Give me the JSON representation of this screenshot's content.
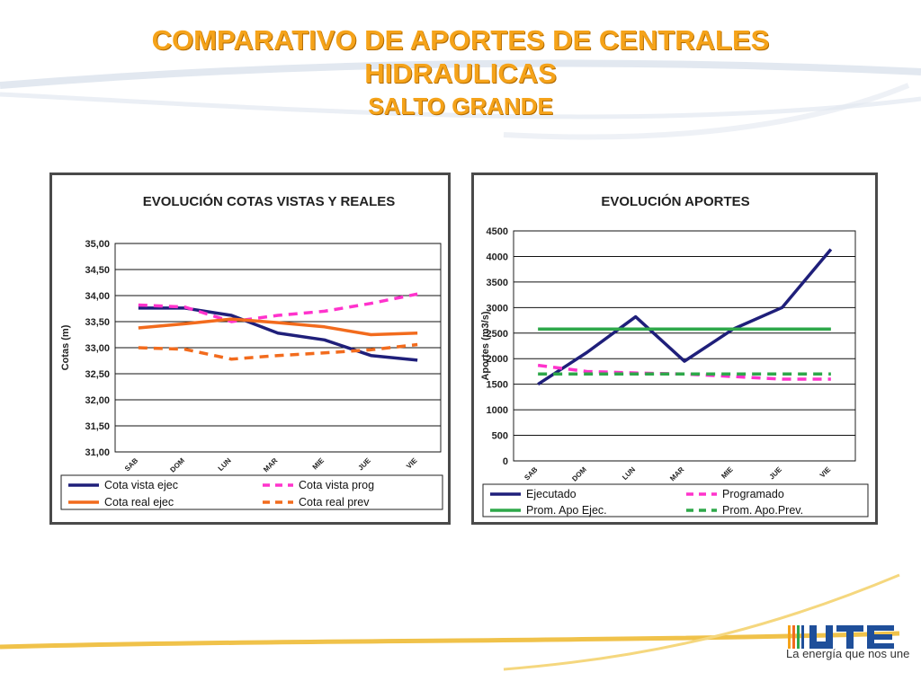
{
  "title": "COMPARATIVO DE APORTES DE CENTRALES",
  "title_line2": "HIDRAULICAS",
  "subtitle": "SALTO GRANDE",
  "logo": {
    "text": "UTE",
    "tagline": "La energía que nos une"
  },
  "colors": {
    "title": "#f5a31a",
    "navy": "#1f1f7a",
    "magenta": "#ff33cc",
    "orange": "#f26b1d",
    "green": "#2ea84a"
  },
  "chart_data": [
    {
      "type": "line",
      "title": "EVOLUCIÓN  COTAS VISTAS Y REALES",
      "ylabel": "Cotas (m)",
      "xlabel": "",
      "categories": [
        "SAB",
        "DOM",
        "LUN",
        "MAR",
        "MIE",
        "JUE",
        "VIE"
      ],
      "ylim": [
        31.0,
        35.0
      ],
      "yticks": [
        "31,00",
        "31,50",
        "32,00",
        "32,50",
        "33,00",
        "33,50",
        "34,00",
        "34,50",
        "35,00"
      ],
      "grid": true,
      "legend_position": "bottom",
      "series": [
        {
          "name": "Cota vista ejec",
          "color": "#1f1f7a",
          "dash": "solid",
          "values": [
            33.76,
            33.76,
            33.62,
            33.28,
            33.15,
            32.85,
            32.76
          ]
        },
        {
          "name": "Cota vista prog",
          "color": "#ff33cc",
          "dash": "dashed",
          "values": [
            33.82,
            33.78,
            33.5,
            33.62,
            33.7,
            33.85,
            34.03
          ]
        },
        {
          "name": "Cota real ejec",
          "color": "#f26b1d",
          "dash": "solid",
          "values": [
            33.38,
            33.46,
            33.55,
            33.48,
            33.4,
            33.25,
            33.28
          ]
        },
        {
          "name": "Cota real prev",
          "color": "#f26b1d",
          "dash": "dashed",
          "values": [
            33.0,
            32.97,
            32.78,
            32.85,
            32.9,
            32.96,
            33.06
          ]
        }
      ]
    },
    {
      "type": "line",
      "title": "EVOLUCIÓN  APORTES",
      "ylabel": "Aportes (m3/s)",
      "xlabel": "",
      "categories": [
        "SAB",
        "DOM",
        "LUN",
        "MAR",
        "MIE",
        "JUE",
        "VIE"
      ],
      "ylim": [
        0,
        4500
      ],
      "yticks": [
        "0",
        "500",
        "1000",
        "1500",
        "2000",
        "2500",
        "3000",
        "3500",
        "4000",
        "4500"
      ],
      "grid": true,
      "legend_position": "bottom",
      "series": [
        {
          "name": "Ejecutado",
          "color": "#1f1f7a",
          "dash": "solid",
          "values": [
            1500,
            2120,
            2820,
            1950,
            2580,
            3000,
            4140
          ]
        },
        {
          "name": "Programado",
          "color": "#ff33cc",
          "dash": "dashed",
          "values": [
            1870,
            1750,
            1720,
            1700,
            1650,
            1600,
            1600
          ]
        },
        {
          "name": "Prom. Apo Ejec.",
          "color": "#2ea84a",
          "dash": "solid",
          "values": [
            2580,
            2580,
            2580,
            2580,
            2580,
            2580,
            2580
          ]
        },
        {
          "name": "Prom. Apo.Prev.",
          "color": "#2ea84a",
          "dash": "dashed",
          "values": [
            1700,
            1700,
            1700,
            1700,
            1700,
            1700,
            1700
          ]
        }
      ]
    }
  ]
}
